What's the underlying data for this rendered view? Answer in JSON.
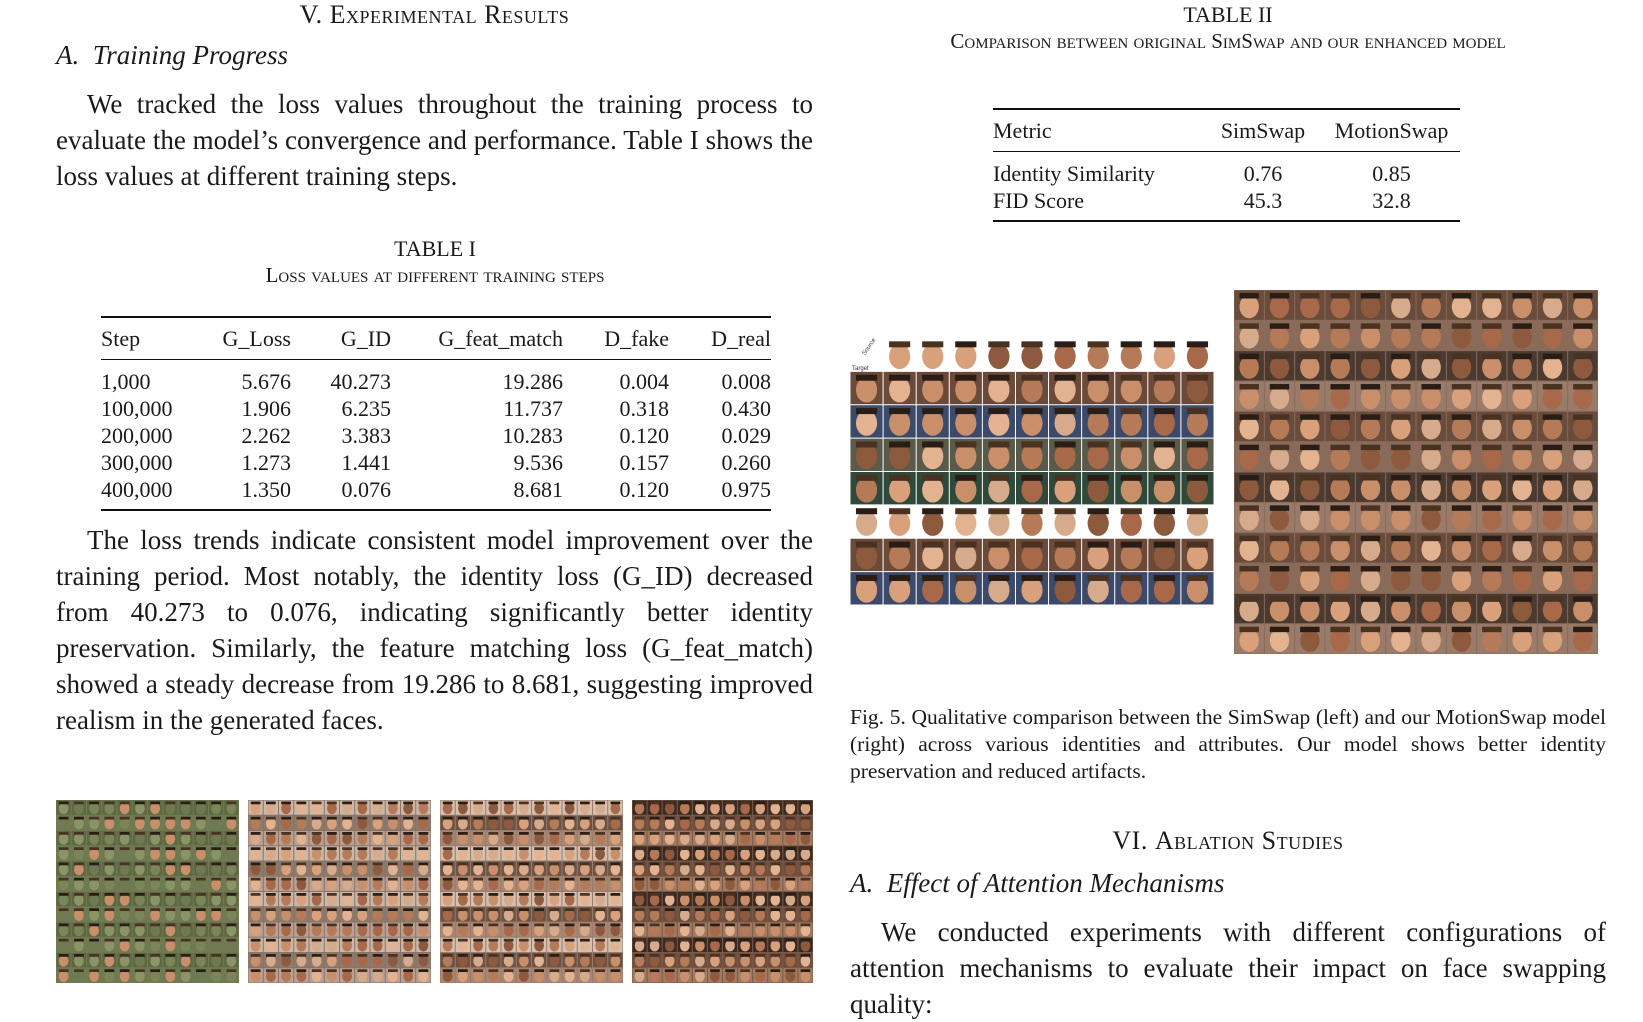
{
  "left": {
    "section_title_num": "V.",
    "section_title_text": "Experimental Results",
    "subsection": "A.  Training Progress",
    "para1": "We tracked the loss values throughout the training process to evaluate the model’s convergence and performance. Table I shows the loss values at different training steps.",
    "table1": {
      "label": "TABLE I",
      "caption": "Loss values at different training steps",
      "headers": [
        "Step",
        "G_Loss",
        "G_ID",
        "G_feat_match",
        "D_fake",
        "D_real"
      ],
      "rows": [
        [
          "1,000",
          "5.676",
          "40.273",
          "19.286",
          "0.004",
          "0.008"
        ],
        [
          "100,000",
          "1.906",
          "6.235",
          "11.737",
          "0.318",
          "0.430"
        ],
        [
          "200,000",
          "2.262",
          "3.383",
          "10.283",
          "0.120",
          "0.029"
        ],
        [
          "300,000",
          "1.273",
          "1.441",
          "9.536",
          "0.157",
          "0.260"
        ],
        [
          "400,000",
          "1.350",
          "0.076",
          "8.681",
          "0.120",
          "0.975"
        ]
      ]
    },
    "para2": "The loss trends indicate consistent model improvement over the training period. Most notably, the identity loss (G_ID) decreased from 40.273 to 0.076, indicating significantly better identity preservation. Similarly, the feature matching loss (G_feat_match) showed a steady decrease from 19.286 to 8.681, suggesting improved realism in the generated faces."
  },
  "right": {
    "table2": {
      "label": "TABLE II",
      "caption": "Comparison between original SimSwap and our enhanced model",
      "headers": [
        "Metric",
        "SimSwap",
        "MotionSwap"
      ],
      "rows": [
        [
          "Identity Similarity",
          "0.76",
          "0.85"
        ],
        [
          "FID Score",
          "45.3",
          "32.8"
        ]
      ]
    },
    "fig_target_label": "Target",
    "fig_source_label": "Source",
    "fig_caption": "Fig. 5.  Qualitative comparison between the SimSwap (left) and our MotionSwap model (right) across various identities and attributes. Our model shows better identity preservation and reduced artifacts.",
    "section_title_num": "VI.",
    "section_title_text": "Ablation Studies",
    "subsection": "A.  Effect of Attention Mechanisms",
    "para1": "We conducted experiments with different configurations of attention mechanisms to evaluate their impact on face swapping quality:"
  },
  "colors": {
    "text": "#1a1a1a",
    "mosaic_green": "#6f7a52",
    "skin_tone": "#c98e6a",
    "dark_bg": "#3a2a22"
  }
}
